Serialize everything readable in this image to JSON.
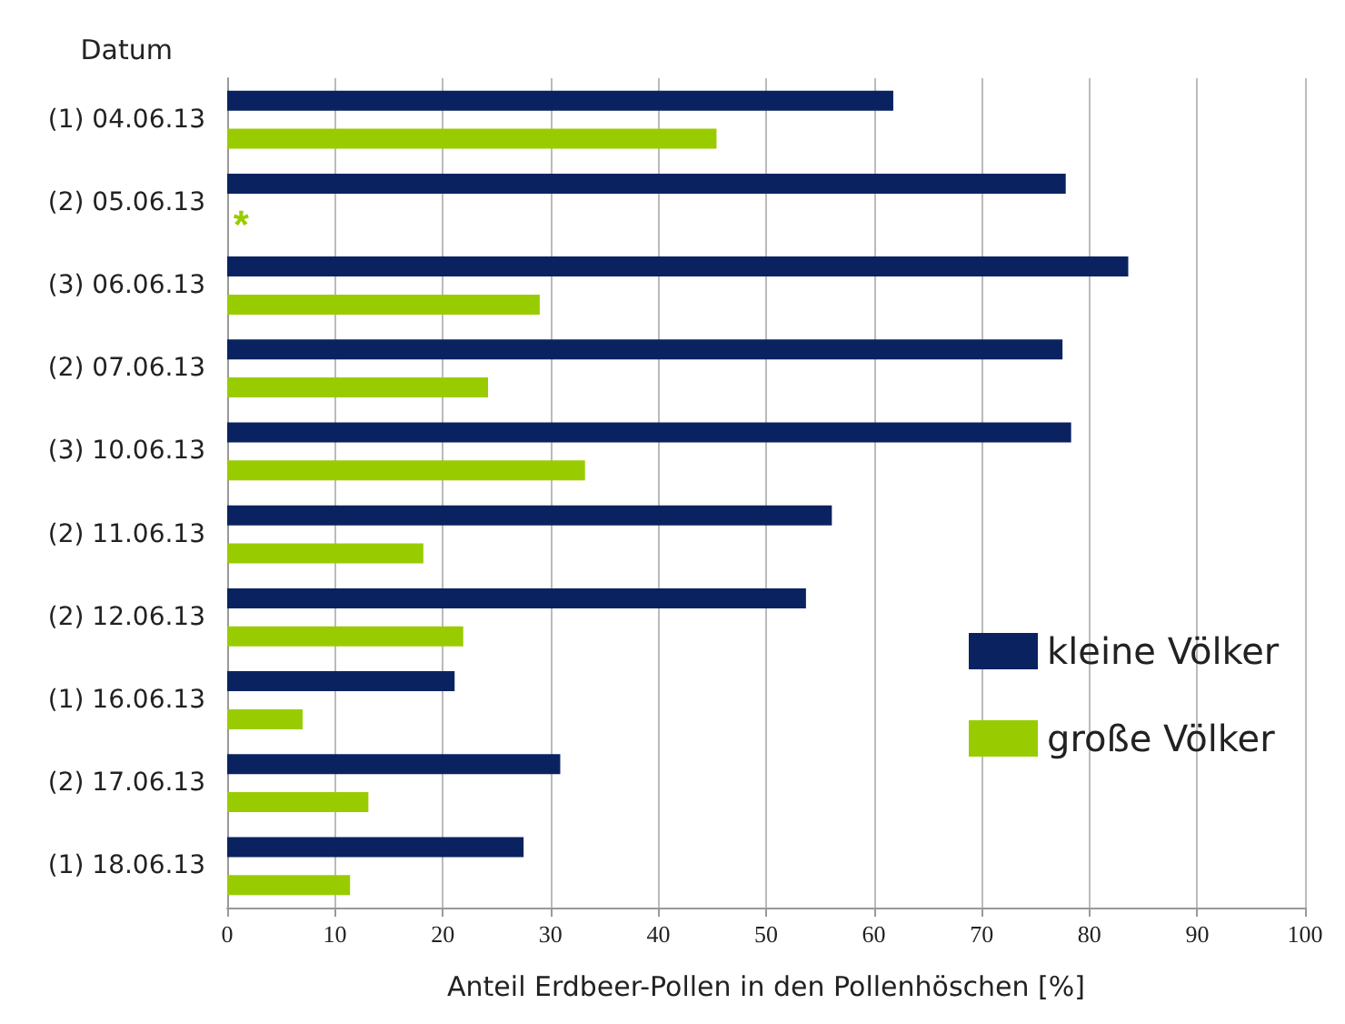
{
  "chart_data": {
    "type": "bar",
    "orientation": "horizontal",
    "ylabel": "Datum",
    "xlabel": "Anteil Erdbeer-Pollen in den Pollenhöschen [%]",
    "categories": [
      "(1) 04.06.13",
      "(2) 05.06.13",
      "(3) 06.06.13",
      "(2) 07.06.13",
      "(3) 10.06.13",
      "(2) 11.06.13",
      "(2) 12.06.13",
      "(1) 16.06.13",
      "(2) 17.06.13",
      "(1) 18.06.13"
    ],
    "series": [
      {
        "name": "kleine Völker",
        "color": "#0a2360",
        "values": [
          61.8,
          77.8,
          83.6,
          77.5,
          78.3,
          56.1,
          53.7,
          21.1,
          30.9,
          27.5
        ]
      },
      {
        "name": "große Völker",
        "color": "#99cc00",
        "values": [
          45.4,
          null,
          29.0,
          24.2,
          33.2,
          18.2,
          21.9,
          7.0,
          13.1,
          11.4
        ]
      }
    ],
    "xlim": [
      0,
      100
    ],
    "xticks": [
      0,
      10,
      20,
      30,
      40,
      50,
      60,
      70,
      80,
      90,
      100
    ],
    "grid": "x",
    "legend": "bottom right",
    "annotations": [
      {
        "text": "*",
        "x": 1.3,
        "y": "(2) 05.06.13"
      }
    ]
  }
}
